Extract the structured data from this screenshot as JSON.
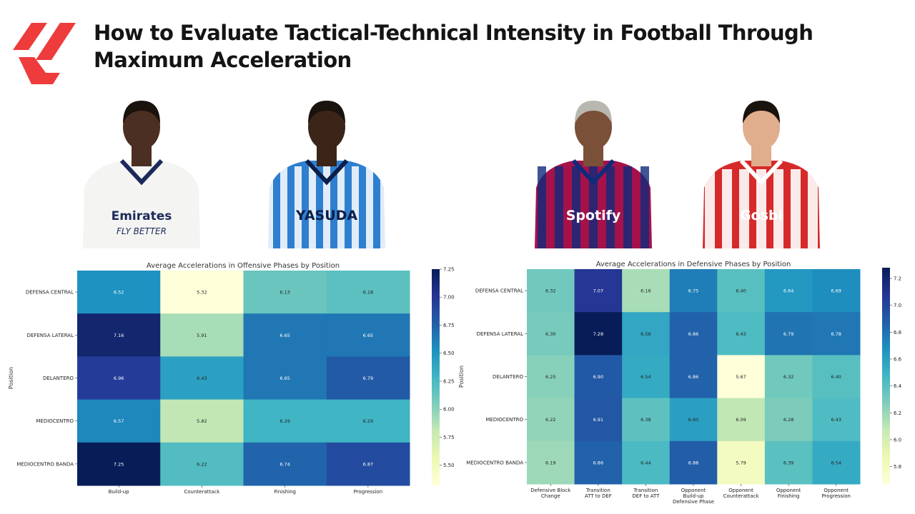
{
  "header": {
    "title": "How to Evaluate Tactical-Technical Intensity in Football Through Maximum Acceleration"
  },
  "players": [
    {
      "kit": "Emirates FLY BETTER",
      "kit_line1": "Emirates",
      "kit_line2": "FLY BETTER",
      "shirt_color": "#f4f4f2",
      "trim_color": "#1c2a5a",
      "skin": "#4a2f22"
    },
    {
      "kit": "YASUDA",
      "kit_line1": "YASUDA",
      "kit_line2": "",
      "shirt_color": "#2f7fd0",
      "trim_color": "#0b1e4a",
      "skin": "#3b2519"
    },
    {
      "kit": "Spotify",
      "kit_line1": "Spotify",
      "kit_line2": "",
      "shirt_color": "#a5124a",
      "trim_color": "#0f2b7a",
      "skin": "#7a5038"
    },
    {
      "kit": "Gosbi",
      "kit_line1": "Gosbi",
      "kit_line2": "",
      "shirt_color": "#d62a2a",
      "trim_color": "#ffffff",
      "skin": "#e0ad8d"
    }
  ],
  "chart_data": [
    {
      "type": "heatmap",
      "title": "Average Accelerations in Offensive Phases by Position",
      "ylabel": "Position",
      "xlabel": "",
      "rows": [
        "DEFENSA CENTRAL",
        "DEFENSA LATERAL",
        "DELANTERO",
        "MEDIOCENTRO",
        "MEDIOCENTRO BANDA"
      ],
      "columns": [
        [
          "Build-up"
        ],
        [
          "Counterattack"
        ],
        [
          "Finishing"
        ],
        [
          "Progression"
        ]
      ],
      "values": [
        [
          6.52,
          5.32,
          6.13,
          6.18
        ],
        [
          7.16,
          5.91,
          6.65,
          6.65
        ],
        [
          6.96,
          6.43,
          6.65,
          6.79
        ],
        [
          6.57,
          5.82,
          6.29,
          6.29
        ],
        [
          7.25,
          6.22,
          6.74,
          6.87
        ]
      ],
      "colorscale": "YlGnBu",
      "vmin": 5.32,
      "vmax": 7.25,
      "colorbar_ticks": [
        5.5,
        5.75,
        6.0,
        6.25,
        6.5,
        6.75,
        7.0,
        7.25
      ],
      "colorbar_tick_labels": [
        "5.50",
        "5.75",
        "6.00",
        "6.25",
        "6.50",
        "6.75",
        "7.00",
        "7.25"
      ]
    },
    {
      "type": "heatmap",
      "title": "Average Accelerations in Defensive Phases by Position",
      "ylabel": "Position",
      "xlabel": "",
      "rows": [
        "DEFENSA CENTRAL",
        "DEFENSA LATERAL",
        "DELANTERO",
        "MEDIOCENTRO",
        "MEDIOCENTRO BANDA"
      ],
      "columns": [
        [
          "Defensive Block",
          "Change"
        ],
        [
          "Transition",
          "ATT to DEF"
        ],
        [
          "Transition",
          "DEF to ATT"
        ],
        [
          "Opponent",
          "Build-up",
          "Defensive Phase"
        ],
        [
          "Opponent",
          "Counterattack"
        ],
        [
          "Opponent",
          "Finishing"
        ],
        [
          "Opponent",
          "Progression"
        ]
      ],
      "values": [
        [
          6.32,
          7.07,
          6.16,
          6.75,
          6.4,
          6.64,
          6.69
        ],
        [
          6.3,
          7.28,
          6.56,
          6.86,
          6.43,
          6.79,
          6.78
        ],
        [
          6.25,
          6.9,
          6.54,
          6.86,
          5.67,
          6.32,
          6.4
        ],
        [
          6.22,
          6.91,
          6.38,
          6.6,
          6.09,
          6.28,
          6.43
        ],
        [
          6.19,
          6.86,
          6.44,
          6.88,
          5.79,
          6.39,
          6.54
        ]
      ],
      "colorscale": "YlGnBu",
      "vmin": 5.67,
      "vmax": 7.28,
      "colorbar_ticks": [
        5.8,
        6.0,
        6.2,
        6.4,
        6.6,
        6.8,
        7.0,
        7.2
      ],
      "colorbar_tick_labels": [
        "5.8",
        "6.0",
        "6.2",
        "6.4",
        "6.6",
        "6.8",
        "7.0",
        "7.2"
      ]
    }
  ]
}
